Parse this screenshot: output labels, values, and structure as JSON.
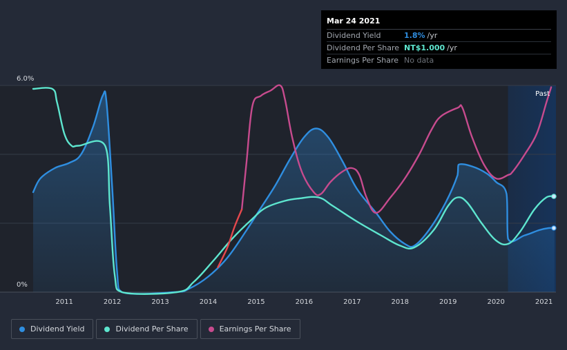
{
  "colors": {
    "dividend_yield": "#2f8ee0",
    "dividend_per_share": "#5ee6cf",
    "earnings_per_share": "#c74b8e",
    "eps_negative": "#e5484d"
  },
  "tooltip": {
    "date": "Mar 24 2021",
    "rows": [
      {
        "label": "Dividend Yield",
        "value": "1.8%",
        "unit": "/yr",
        "color": "#2f8ee0"
      },
      {
        "label": "Dividend Per Share",
        "value": "NT$1.000",
        "unit": "/yr",
        "color": "#5ee6cf"
      },
      {
        "label": "Earnings Per Share",
        "value": "No data",
        "unit": "",
        "color": "#6d727a"
      }
    ]
  },
  "legend": {
    "items": [
      {
        "label": "Dividend Yield",
        "color": "#2f8ee0"
      },
      {
        "label": "Dividend Per Share",
        "color": "#5ee6cf"
      },
      {
        "label": "Earnings Per Share",
        "color": "#c74b8e"
      }
    ]
  },
  "chart_data": {
    "type": "line",
    "title": "",
    "xlabel": "",
    "ylabel": "",
    "xlim": [
      2010.35,
      2021.25
    ],
    "ylim": [
      0,
      6.0
    ],
    "y_tick_labels": [
      "0%",
      "6.0%"
    ],
    "x_tick_labels": [
      "2011",
      "2012",
      "2013",
      "2014",
      "2015",
      "2016",
      "2017",
      "2018",
      "2019",
      "2020",
      "2021"
    ],
    "x_ticks": [
      2011,
      2012,
      2013,
      2014,
      2015,
      2016,
      2017,
      2018,
      2019,
      2020,
      2021
    ],
    "past_label": "Past",
    "past_from": 2020.25,
    "grid": true,
    "series": [
      {
        "name": "Dividend Yield",
        "key": "dividend_yield",
        "filled": true,
        "points": [
          [
            2010.35,
            2.9
          ],
          [
            2010.5,
            3.3
          ],
          [
            2010.8,
            3.6
          ],
          [
            2011.1,
            3.75
          ],
          [
            2011.35,
            4.0
          ],
          [
            2011.6,
            4.8
          ],
          [
            2011.8,
            5.7
          ],
          [
            2011.88,
            5.5
          ],
          [
            2012.0,
            3.0
          ],
          [
            2012.1,
            0.6
          ],
          [
            2012.2,
            0.0
          ],
          [
            2013.3,
            0.0
          ],
          [
            2013.6,
            0.1
          ],
          [
            2014.0,
            0.45
          ],
          [
            2014.4,
            1.0
          ],
          [
            2014.8,
            1.8
          ],
          [
            2015.1,
            2.45
          ],
          [
            2015.4,
            3.1
          ],
          [
            2015.7,
            3.85
          ],
          [
            2016.0,
            4.5
          ],
          [
            2016.25,
            4.75
          ],
          [
            2016.5,
            4.5
          ],
          [
            2016.8,
            3.8
          ],
          [
            2017.1,
            3.0
          ],
          [
            2017.5,
            2.3
          ],
          [
            2017.8,
            1.75
          ],
          [
            2018.1,
            1.4
          ],
          [
            2018.3,
            1.35
          ],
          [
            2018.6,
            1.8
          ],
          [
            2018.95,
            2.6
          ],
          [
            2019.2,
            3.4
          ],
          [
            2019.22,
            3.7
          ],
          [
            2019.5,
            3.65
          ],
          [
            2019.8,
            3.45
          ],
          [
            2020.0,
            3.2
          ],
          [
            2020.22,
            2.85
          ],
          [
            2020.25,
            1.55
          ],
          [
            2020.6,
            1.65
          ],
          [
            2020.9,
            1.8
          ],
          [
            2021.1,
            1.86
          ],
          [
            2021.22,
            1.86
          ]
        ]
      },
      {
        "name": "Dividend Per Share",
        "key": "dividend_per_share",
        "filled": false,
        "points": [
          [
            2010.35,
            5.9
          ],
          [
            2010.75,
            5.9
          ],
          [
            2010.85,
            5.5
          ],
          [
            2011.0,
            4.6
          ],
          [
            2011.15,
            4.25
          ],
          [
            2011.3,
            4.25
          ],
          [
            2011.85,
            4.25
          ],
          [
            2011.95,
            2.5
          ],
          [
            2012.05,
            0.5
          ],
          [
            2012.2,
            0.0
          ],
          [
            2013.35,
            0.0
          ],
          [
            2013.7,
            0.3
          ],
          [
            2014.1,
            0.9
          ],
          [
            2014.5,
            1.55
          ],
          [
            2014.9,
            2.1
          ],
          [
            2015.2,
            2.45
          ],
          [
            2015.6,
            2.65
          ],
          [
            2015.9,
            2.72
          ],
          [
            2016.3,
            2.75
          ],
          [
            2016.6,
            2.5
          ],
          [
            2017.1,
            2.05
          ],
          [
            2017.6,
            1.65
          ],
          [
            2018.0,
            1.35
          ],
          [
            2018.3,
            1.3
          ],
          [
            2018.7,
            1.8
          ],
          [
            2019.0,
            2.5
          ],
          [
            2019.2,
            2.75
          ],
          [
            2019.4,
            2.6
          ],
          [
            2019.7,
            2.0
          ],
          [
            2020.0,
            1.5
          ],
          [
            2020.25,
            1.4
          ],
          [
            2020.5,
            1.75
          ],
          [
            2020.8,
            2.4
          ],
          [
            2021.05,
            2.75
          ],
          [
            2021.22,
            2.78
          ]
        ]
      },
      {
        "name": "Earnings Per Share",
        "key": "earnings_per_share",
        "filled": false,
        "negative_points": [
          [
            2014.2,
            0.72
          ],
          [
            2014.4,
            1.3
          ],
          [
            2014.55,
            1.9
          ],
          [
            2014.7,
            2.4
          ]
        ],
        "points": [
          [
            2014.7,
            2.4
          ],
          [
            2014.8,
            3.8
          ],
          [
            2014.92,
            5.4
          ],
          [
            2015.1,
            5.7
          ],
          [
            2015.3,
            5.85
          ],
          [
            2015.5,
            6.0
          ],
          [
            2015.6,
            5.6
          ],
          [
            2015.75,
            4.5
          ],
          [
            2015.95,
            3.5
          ],
          [
            2016.2,
            2.9
          ],
          [
            2016.35,
            2.85
          ],
          [
            2016.55,
            3.2
          ],
          [
            2016.8,
            3.5
          ],
          [
            2017.0,
            3.6
          ],
          [
            2017.15,
            3.4
          ],
          [
            2017.3,
            2.75
          ],
          [
            2017.5,
            2.3
          ],
          [
            2017.8,
            2.75
          ],
          [
            2018.1,
            3.3
          ],
          [
            2018.4,
            4.0
          ],
          [
            2018.65,
            4.7
          ],
          [
            2018.85,
            5.1
          ],
          [
            2019.2,
            5.35
          ],
          [
            2019.3,
            5.35
          ],
          [
            2019.5,
            4.5
          ],
          [
            2019.75,
            3.7
          ],
          [
            2020.0,
            3.3
          ],
          [
            2020.25,
            3.4
          ],
          [
            2020.35,
            3.5
          ],
          [
            2020.6,
            4.0
          ],
          [
            2020.85,
            4.6
          ],
          [
            2021.05,
            5.5
          ],
          [
            2021.15,
            5.95
          ]
        ]
      }
    ]
  }
}
